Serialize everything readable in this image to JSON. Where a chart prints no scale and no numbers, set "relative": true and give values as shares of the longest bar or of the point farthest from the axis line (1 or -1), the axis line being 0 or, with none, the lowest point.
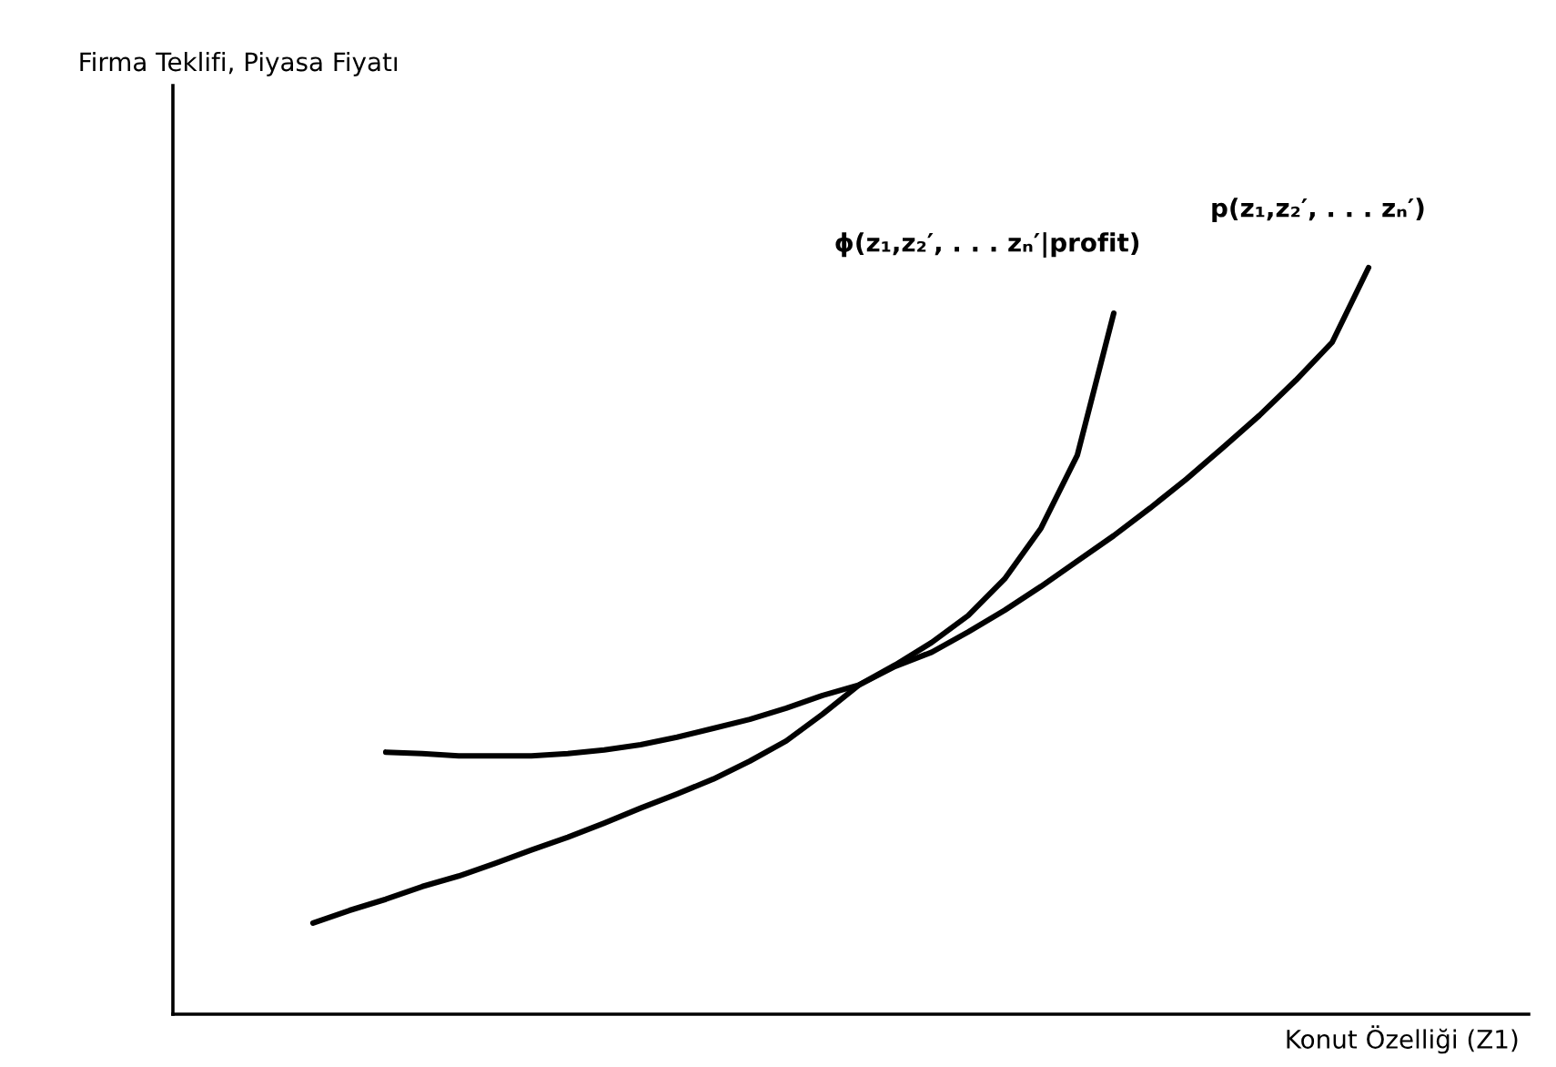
{
  "chart_data": {
    "type": "line",
    "relative": true,
    "xlabel": "Konut Özelliği (Z1)",
    "annotations": [
      "Firma Teklifi, Piyasa Fiyatı"
    ],
    "categories": [
      null,
      null,
      null,
      null,
      null,
      null,
      null,
      null,
      null,
      null,
      null,
      null,
      null,
      null,
      null,
      null,
      null,
      null,
      null,
      null,
      null,
      null,
      null,
      null,
      null,
      null,
      null,
      null,
      null,
      null
    ],
    "series": [
      {
        "name": "p(z₁,z₂′, . . . zₙ′)",
        "color": "#000000",
        "values": [
          0.122,
          0.139,
          0.154,
          0.171,
          0.185,
          0.202,
          0.22,
          0.237,
          0.256,
          0.276,
          0.295,
          0.315,
          0.339,
          0.366,
          0.402,
          0.441,
          0.466,
          0.485,
          0.512,
          0.541,
          0.573,
          0.607,
          0.641,
          0.678,
          0.717,
          0.759,
          0.802,
          0.849,
          0.9,
          1
        ]
      },
      {
        "name": "ϕ(z₁,z₂′, . . . zₙ′|profit)",
        "color": "#000000",
        "values": [
          null,
          null,
          0.351,
          0.349,
          0.346,
          0.346,
          0.346,
          0.349,
          0.354,
          0.361,
          0.371,
          0.383,
          0.395,
          0.41,
          0.427,
          0.441,
          0.468,
          0.498,
          0.534,
          0.583,
          0.651,
          0.749,
          0.939,
          null,
          null,
          null,
          null,
          null,
          null,
          null
        ]
      }
    ],
    "grid": false,
    "legend": false,
    "tick_labels": false,
    "marker": "none",
    "line_style": "solid"
  }
}
